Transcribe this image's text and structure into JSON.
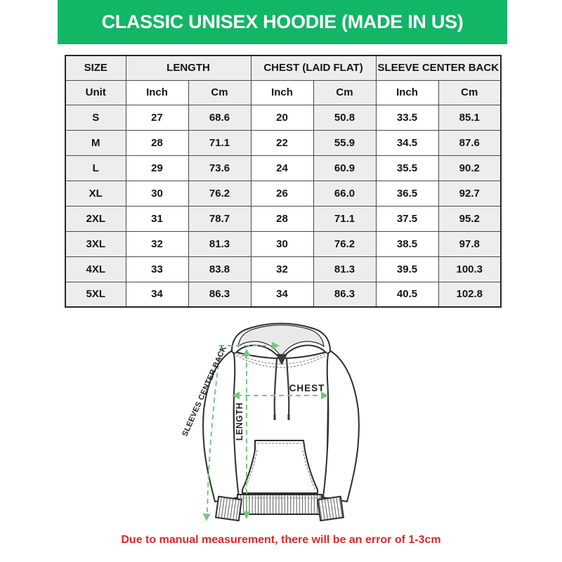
{
  "banner": {
    "title": "CLASSIC UNISEX HOODIE (MADE IN US)"
  },
  "colors": {
    "banner_bg": "#11b667",
    "banner_text": "#ffffff",
    "shade_bg": "#ededed",
    "table_border": "#262626",
    "note_text": "#e12626",
    "diagram_line": "#78c57e",
    "outline": "#2d2d2d"
  },
  "table": {
    "group_headers": [
      {
        "label": "SIZE"
      },
      {
        "label": "LENGTH"
      },
      {
        "label": "CHEST (LAID FLAT)"
      },
      {
        "label": "SLEEVE CENTER BACK"
      }
    ],
    "unit_row": [
      "Unit",
      "Inch",
      "Cm",
      "Inch",
      "Cm",
      "Inch",
      "Cm"
    ],
    "rows": [
      {
        "size": "S",
        "values": [
          "27",
          "68.6",
          "20",
          "50.8",
          "33.5",
          "85.1"
        ]
      },
      {
        "size": "M",
        "values": [
          "28",
          "71.1",
          "22",
          "55.9",
          "34.5",
          "87.6"
        ]
      },
      {
        "size": "L",
        "values": [
          "29",
          "73.6",
          "24",
          "60.9",
          "35.5",
          "90.2"
        ]
      },
      {
        "size": "XL",
        "values": [
          "30",
          "76.2",
          "26",
          "66.0",
          "36.5",
          "92.7"
        ]
      },
      {
        "size": "2XL",
        "values": [
          "31",
          "78.7",
          "28",
          "71.1",
          "37.5",
          "95.2"
        ]
      },
      {
        "size": "3XL",
        "values": [
          "32",
          "81.3",
          "30",
          "76.2",
          "38.5",
          "97.8"
        ]
      },
      {
        "size": "4XL",
        "values": [
          "33",
          "83.8",
          "32",
          "81.3",
          "39.5",
          "100.3"
        ]
      },
      {
        "size": "5XL",
        "values": [
          "34",
          "86.3",
          "34",
          "86.3",
          "40.5",
          "102.8"
        ]
      }
    ]
  },
  "diagram": {
    "sleeve_label": "SLEEVES CENTER BACK",
    "chest_label": "CHEST",
    "length_label": "LENGTH"
  },
  "footer": {
    "note": "Due to manual measurement, there will be an error of 1-3cm"
  }
}
